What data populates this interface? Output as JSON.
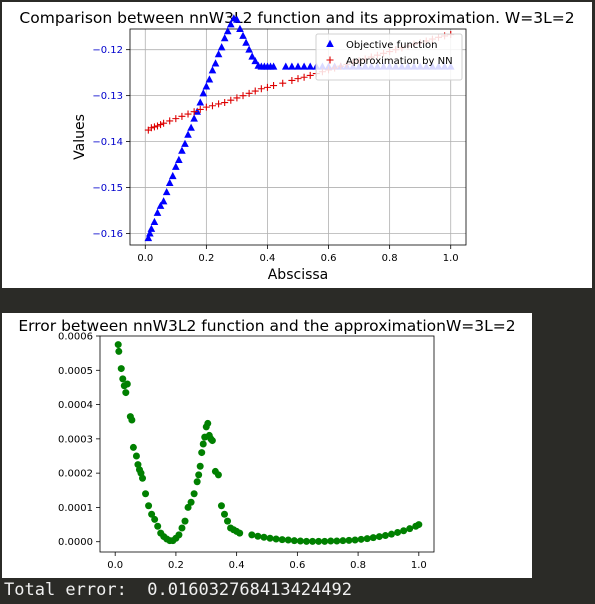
{
  "output": {
    "total_error_label": "Total error:  0.016032768413424492"
  },
  "chart_data": [
    {
      "type": "scatter",
      "title": "Comparison between nnW3L2 function and its approximation. W=3L=2",
      "xlabel": "Abscissa",
      "ylabel": "Values",
      "xlim": [
        -0.05,
        1.05
      ],
      "ylim": [
        -0.1625,
        -0.1155
      ],
      "grid": true,
      "legend_position": "top-right",
      "x_ticks": [
        0.0,
        0.2,
        0.4,
        0.6,
        0.8,
        1.0
      ],
      "x_tick_labels": [
        "0.0",
        "0.2",
        "0.4",
        "0.6",
        "0.8",
        "1.0"
      ],
      "y_ticks": [
        -0.16,
        -0.15,
        -0.14,
        -0.13,
        -0.12
      ],
      "y_tick_labels": [
        "−0.16",
        "−0.15",
        "−0.14",
        "−0.13",
        "−0.12"
      ],
      "tick_label_color": "#0000cc",
      "series": [
        {
          "name": "Objective function",
          "marker": "triangle",
          "color": "#0000ff",
          "x": [
            0.01,
            0.015,
            0.02,
            0.03,
            0.04,
            0.05,
            0.06,
            0.07,
            0.08,
            0.09,
            0.1,
            0.11,
            0.12,
            0.13,
            0.14,
            0.15,
            0.16,
            0.17,
            0.18,
            0.19,
            0.2,
            0.21,
            0.22,
            0.23,
            0.24,
            0.25,
            0.26,
            0.27,
            0.28,
            0.29,
            0.3,
            0.31,
            0.32,
            0.33,
            0.34,
            0.35,
            0.36,
            0.37,
            0.38,
            0.39,
            0.4,
            0.41,
            0.42,
            0.46,
            0.48,
            0.5,
            0.52,
            0.54,
            0.56,
            0.58,
            0.6,
            0.62,
            0.64,
            0.66,
            0.68,
            0.7,
            0.72,
            0.74,
            0.76,
            0.78,
            0.8,
            0.82,
            0.84,
            0.86,
            0.88,
            0.9,
            0.92,
            0.94,
            0.96,
            0.98,
            1.0
          ],
          "y": [
            -0.161,
            -0.16,
            -0.159,
            -0.1575,
            -0.1555,
            -0.154,
            -0.153,
            -0.151,
            -0.149,
            -0.1475,
            -0.1455,
            -0.144,
            -0.142,
            -0.1405,
            -0.1385,
            -0.137,
            -0.135,
            -0.1335,
            -0.1315,
            -0.1295,
            -0.128,
            -0.1265,
            -0.1245,
            -0.123,
            -0.121,
            -0.1195,
            -0.1175,
            -0.116,
            -0.1145,
            -0.1132,
            -0.1135,
            -0.1155,
            -0.117,
            -0.1185,
            -0.12,
            -0.1215,
            -0.1225,
            -0.1235,
            -0.1237,
            -0.1237,
            -0.1237,
            -0.1237,
            -0.1237,
            -0.1237,
            -0.1237,
            -0.1237,
            -0.1237,
            -0.1237,
            -0.1237,
            -0.1237,
            -0.1237,
            -0.1237,
            -0.1237,
            -0.1237,
            -0.1237,
            -0.1237,
            -0.1237,
            -0.1237,
            -0.1237,
            -0.1237,
            -0.1237,
            -0.1237,
            -0.1237,
            -0.1237,
            -0.1237,
            -0.1237,
            -0.1237,
            -0.1237,
            -0.1237,
            -0.1237,
            -0.1237
          ]
        },
        {
          "name": "Approximation by NN",
          "marker": "plus",
          "color": "#dd0000",
          "x": [
            0.01,
            0.02,
            0.03,
            0.04,
            0.05,
            0.06,
            0.08,
            0.1,
            0.12,
            0.14,
            0.16,
            0.18,
            0.2,
            0.22,
            0.24,
            0.26,
            0.28,
            0.3,
            0.32,
            0.34,
            0.36,
            0.38,
            0.4,
            0.42,
            0.45,
            0.48,
            0.5,
            0.52,
            0.54,
            0.56,
            0.58,
            0.6,
            0.62,
            0.64,
            0.66,
            0.68,
            0.7,
            0.72,
            0.74,
            0.76,
            0.78,
            0.8,
            0.82,
            0.84,
            0.86,
            0.88,
            0.9,
            0.92,
            0.94,
            0.96,
            0.98,
            1.0
          ],
          "y": [
            -0.1375,
            -0.137,
            -0.1368,
            -0.1366,
            -0.1363,
            -0.136,
            -0.1355,
            -0.135,
            -0.1345,
            -0.134,
            -0.1335,
            -0.133,
            -0.1325,
            -0.1322,
            -0.1318,
            -0.1315,
            -0.131,
            -0.1305,
            -0.13,
            -0.1295,
            -0.129,
            -0.1285,
            -0.1282,
            -0.1278,
            -0.1273,
            -0.1267,
            -0.1263,
            -0.126,
            -0.1256,
            -0.1252,
            -0.1248,
            -0.1244,
            -0.124,
            -0.1236,
            -0.1232,
            -0.1228,
            -0.1224,
            -0.122,
            -0.1216,
            -0.1212,
            -0.1208,
            -0.1204,
            -0.12,
            -0.1196,
            -0.1192,
            -0.1188,
            -0.1185,
            -0.1181,
            -0.1177,
            -0.1173,
            -0.117,
            -0.1167
          ]
        }
      ]
    },
    {
      "type": "scatter",
      "title": "Error between nnW3L2 function and the approximationW=3L=2",
      "xlabel": "",
      "ylabel": "",
      "xlim": [
        -0.05,
        1.05
      ],
      "ylim": [
        -3e-05,
        0.0006
      ],
      "grid": false,
      "x_ticks": [
        0.0,
        0.2,
        0.4,
        0.6,
        0.8,
        1.0
      ],
      "x_tick_labels": [
        "0.0",
        "0.2",
        "0.4",
        "0.6",
        "0.8",
        "1.0"
      ],
      "y_ticks": [
        0,
        0.0001,
        0.0002,
        0.0003,
        0.0004,
        0.0005,
        0.0006
      ],
      "y_tick_labels": [
        "0.0000",
        "0.0001",
        "0.0002",
        "0.0003",
        "0.0004",
        "0.0005",
        "0.0006"
      ],
      "series": [
        {
          "marker": "circle",
          "color": "#008000",
          "x": [
            0.01,
            0.012,
            0.02,
            0.025,
            0.03,
            0.035,
            0.04,
            0.05,
            0.055,
            0.06,
            0.07,
            0.075,
            0.08,
            0.085,
            0.09,
            0.1,
            0.11,
            0.12,
            0.13,
            0.14,
            0.15,
            0.16,
            0.17,
            0.18,
            0.19,
            0.2,
            0.21,
            0.22,
            0.23,
            0.24,
            0.25,
            0.26,
            0.27,
            0.275,
            0.28,
            0.285,
            0.29,
            0.295,
            0.3,
            0.305,
            0.31,
            0.315,
            0.32,
            0.33,
            0.34,
            0.35,
            0.36,
            0.37,
            0.38,
            0.39,
            0.4,
            0.41,
            0.45,
            0.47,
            0.49,
            0.51,
            0.53,
            0.55,
            0.57,
            0.59,
            0.61,
            0.63,
            0.65,
            0.67,
            0.69,
            0.71,
            0.73,
            0.75,
            0.77,
            0.79,
            0.81,
            0.83,
            0.85,
            0.87,
            0.89,
            0.91,
            0.93,
            0.95,
            0.97,
            0.99,
            1.0
          ],
          "y": [
            0.000575,
            0.000555,
            0.000505,
            0.000475,
            0.000455,
            0.000435,
            0.00046,
            0.000365,
            0.000355,
            0.000275,
            0.00025,
            0.000225,
            0.00021,
            0.0002,
            0.000185,
            0.00014,
            0.000105,
            8e-05,
            6.5e-05,
            4.5e-05,
            2.5e-05,
            1.5e-05,
            8e-06,
            3e-06,
            3e-06,
            1e-05,
            2e-05,
            4e-05,
            6e-05,
            0.0001,
            0.000115,
            0.00014,
            0.000175,
            0.000195,
            0.00022,
            0.00026,
            0.000285,
            0.000305,
            0.000335,
            0.000345,
            0.00031,
            0.0003,
            0.000295,
            0.000205,
            0.000195,
            0.000105,
            8e-05,
            6e-05,
            4e-05,
            3.5e-05,
            3e-05,
            2.5e-05,
            2e-05,
            1.6e-05,
            1.3e-05,
            1e-05,
            8e-06,
            6e-06,
            5e-06,
            3e-06,
            2e-06,
            1e-06,
            1e-06,
            1e-06,
            1e-06,
            2e-06,
            2e-06,
            3e-06,
            4e-06,
            5e-06,
            7e-06,
            9e-06,
            1.2e-05,
            1.5e-05,
            1.8e-05,
            2.2e-05,
            2.7e-05,
            3.2e-05,
            3.8e-05,
            4.5e-05,
            5e-05
          ]
        }
      ]
    }
  ]
}
